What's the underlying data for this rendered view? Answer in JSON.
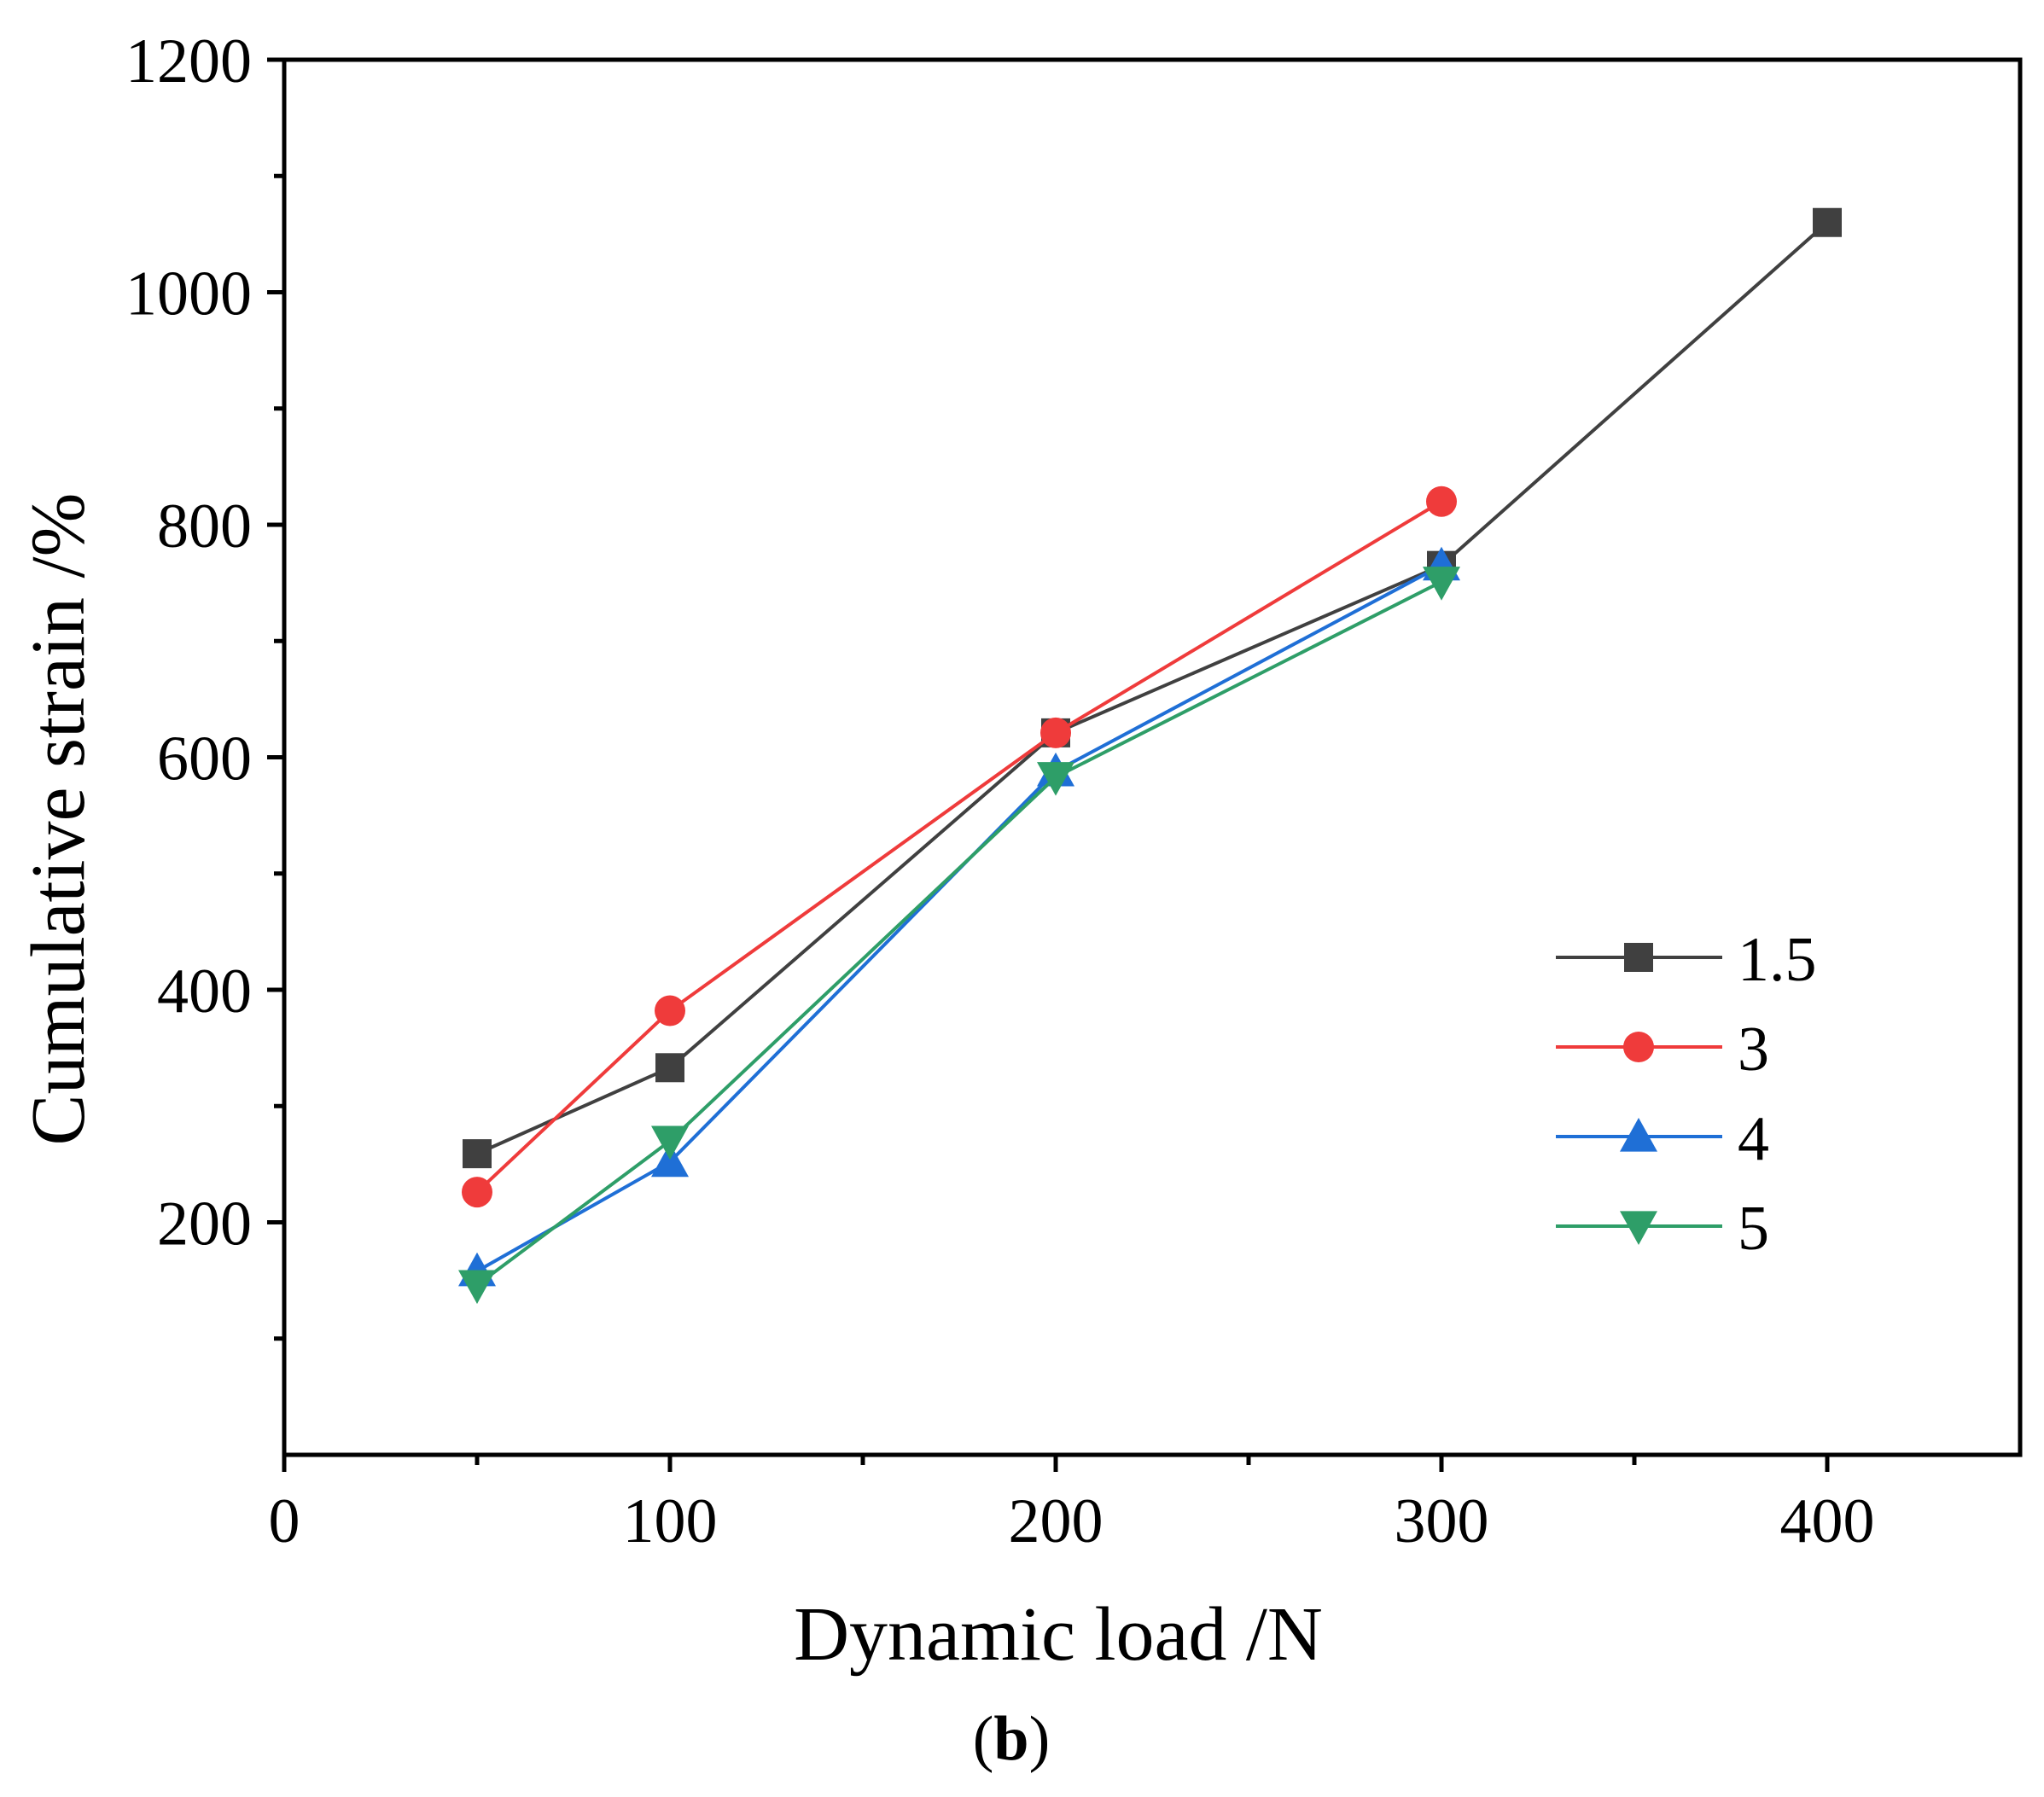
{
  "chart_data": {
    "type": "line",
    "title": "",
    "xlabel": "Dynamic load /N",
    "ylabel": "Cumulative strain /%",
    "caption_open": "(",
    "caption_letter": "b",
    "caption_close": ")",
    "xlim": [
      0,
      450
    ],
    "ylim": [
      0,
      1200
    ],
    "x_ticks": [
      0,
      100,
      200,
      300,
      400
    ],
    "x_minor_ticks": [
      50,
      150,
      250,
      350
    ],
    "y_ticks": [
      200,
      400,
      600,
      800,
      1000,
      1200
    ],
    "y_minor_ticks": [
      100,
      300,
      500,
      700,
      900,
      1100
    ],
    "legend_position": "center-right",
    "series": [
      {
        "name": "1.5",
        "color": "#404040",
        "marker": "square",
        "x": [
          50,
          100,
          200,
          300,
          400
        ],
        "y": [
          259,
          333,
          621,
          765,
          1060
        ]
      },
      {
        "name": "3",
        "color": "#ef3b3b",
        "marker": "circle",
        "x": [
          50,
          100,
          200,
          300
        ],
        "y": [
          226,
          382,
          621,
          820
        ]
      },
      {
        "name": "4",
        "color": "#1f6fd6",
        "marker": "triangle-up",
        "x": [
          50,
          100,
          200,
          300
        ],
        "y": [
          158,
          252,
          588,
          765
        ]
      },
      {
        "name": "5",
        "color": "#2e9e68",
        "marker": "triangle-down",
        "x": [
          50,
          100,
          200,
          300
        ],
        "y": [
          146,
          270,
          583,
          751
        ]
      }
    ]
  }
}
